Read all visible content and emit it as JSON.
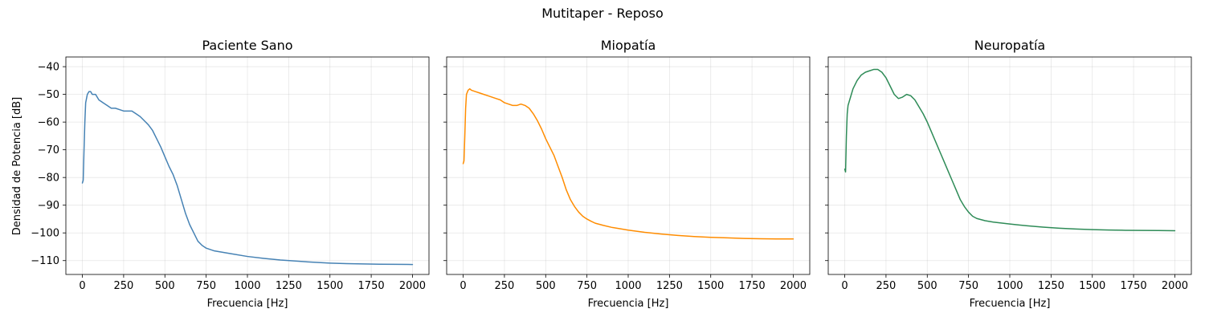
{
  "chart_data": {
    "type": "line",
    "suptitle": "Mutitaper - Reposo",
    "ylabel": "Densidad de Potencia [dB]",
    "xlabel": "Frecuencia [Hz]",
    "xlim": [
      -100,
      2100
    ],
    "ylim": [
      -115,
      -36.5
    ],
    "xticks": [
      0,
      250,
      500,
      750,
      1000,
      1250,
      1500,
      1750,
      2000
    ],
    "yticks": [
      -110,
      -100,
      -90,
      -80,
      -70,
      -60,
      -50,
      -40
    ],
    "grid": true,
    "panels": [
      {
        "title": "Paciente Sano",
        "color": "#4682b4",
        "x": [
          0,
          5,
          10,
          15,
          20,
          30,
          40,
          50,
          60,
          80,
          100,
          125,
          150,
          175,
          200,
          225,
          250,
          275,
          300,
          325,
          350,
          375,
          400,
          425,
          450,
          475,
          500,
          525,
          550,
          575,
          600,
          625,
          650,
          675,
          700,
          725,
          750,
          775,
          800,
          850,
          900,
          1000,
          1100,
          1200,
          1300,
          1400,
          1500,
          1600,
          1700,
          1800,
          1900,
          2000
        ],
        "y": [
          -82,
          -81,
          -70,
          -60,
          -53,
          -50,
          -49,
          -49,
          -50,
          -50,
          -52,
          -53,
          -54,
          -55,
          -55,
          -55.5,
          -56,
          -56,
          -56,
          -57,
          -58,
          -59.5,
          -61,
          -63,
          -66,
          -69,
          -72.5,
          -76,
          -79,
          -83,
          -88,
          -93,
          -97,
          -100,
          -103,
          -104.5,
          -105.5,
          -106,
          -106.5,
          -107,
          -107.5,
          -108.5,
          -109.2,
          -109.8,
          -110.2,
          -110.6,
          -110.9,
          -111.1,
          -111.2,
          -111.3,
          -111.35,
          -111.4
        ]
      },
      {
        "title": "Miopatía",
        "color": "#ff8c00",
        "x": [
          0,
          5,
          10,
          15,
          20,
          30,
          40,
          50,
          75,
          100,
          125,
          150,
          175,
          200,
          225,
          250,
          275,
          300,
          325,
          350,
          375,
          400,
          425,
          450,
          475,
          500,
          525,
          550,
          575,
          600,
          625,
          650,
          675,
          700,
          725,
          750,
          775,
          800,
          850,
          900,
          1000,
          1100,
          1200,
          1300,
          1400,
          1500,
          1600,
          1700,
          1800,
          1900,
          2000
        ],
        "y": [
          -75,
          -74,
          -65,
          -55,
          -50,
          -48.5,
          -48,
          -48.5,
          -49,
          -49.5,
          -50,
          -50.5,
          -51,
          -51.5,
          -52,
          -53,
          -53.5,
          -54,
          -54,
          -53.5,
          -54,
          -55,
          -57,
          -59.5,
          -62.5,
          -66,
          -69,
          -72,
          -76,
          -80,
          -84.5,
          -88,
          -90.5,
          -92.5,
          -94,
          -95,
          -95.8,
          -96.5,
          -97.3,
          -98,
          -99,
          -99.8,
          -100.4,
          -100.9,
          -101.3,
          -101.6,
          -101.8,
          -102,
          -102.1,
          -102.2,
          -102.2
        ]
      },
      {
        "title": "Neuropatía",
        "color": "#2e8b57",
        "x": [
          0,
          5,
          10,
          15,
          20,
          30,
          40,
          50,
          75,
          100,
          125,
          150,
          175,
          200,
          225,
          250,
          275,
          300,
          325,
          350,
          375,
          400,
          425,
          450,
          475,
          500,
          525,
          550,
          575,
          600,
          625,
          650,
          675,
          700,
          725,
          750,
          775,
          800,
          850,
          900,
          1000,
          1100,
          1200,
          1300,
          1400,
          1500,
          1600,
          1700,
          1800,
          1900,
          2000
        ],
        "y": [
          -77,
          -78,
          -65,
          -57,
          -54,
          -52,
          -50,
          -48,
          -45,
          -43,
          -42,
          -41.5,
          -41,
          -41,
          -42,
          -44,
          -47,
          -50,
          -51.5,
          -51,
          -50,
          -50.5,
          -52,
          -54.5,
          -57,
          -60,
          -63.5,
          -67,
          -70.5,
          -74,
          -77.5,
          -81,
          -84.5,
          -88,
          -90.5,
          -92.5,
          -94,
          -94.8,
          -95.6,
          -96.1,
          -96.8,
          -97.4,
          -97.9,
          -98.3,
          -98.6,
          -98.8,
          -98.95,
          -99.05,
          -99.1,
          -99.15,
          -99.2
        ]
      }
    ]
  }
}
